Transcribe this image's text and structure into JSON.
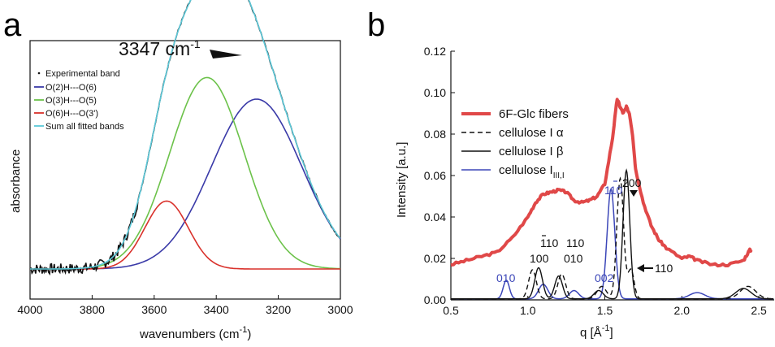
{
  "panels": {
    "a": "a",
    "b": "b"
  },
  "colors": {
    "experimental": "#111111",
    "o2h": "#3a3aa8",
    "o3h": "#6cc24a",
    "o6h": "#d9312b",
    "sum": "#5cc8d8",
    "fibers": "#e04848",
    "cellulose": "#111111",
    "cellulose_III": "#3b46b8"
  },
  "chart_data": [
    {
      "type": "line",
      "panel": "a",
      "title": "",
      "xlabel_main": "wavenumbers (cm",
      "xlabel_sup": "-1",
      "xlabel_end": ")",
      "ylabel": "absorbance",
      "xlim": [
        4000,
        3000
      ],
      "xticks": [
        "4000",
        "3800",
        "3600",
        "3400",
        "3200",
        "3000"
      ],
      "annotation": {
        "text": "3347 cm",
        "sup": "-1",
        "x": 3347
      },
      "series": [
        {
          "name": "Experimental band",
          "style": "dotted",
          "peak_x": 3347
        },
        {
          "name": "O(2)H---O(6)",
          "center": 3270,
          "height": 0.55,
          "width": 145
        },
        {
          "name": "O(3)H---O(5)",
          "center": 3430,
          "height": 0.62,
          "width": 120
        },
        {
          "name": "O(6)H---O(3')",
          "center": 3560,
          "height": 0.22,
          "width": 70
        },
        {
          "name": "Sum all fitted bands"
        }
      ]
    },
    {
      "type": "line",
      "panel": "b",
      "title": "",
      "xlabel_main": "q [Å",
      "xlabel_sup": "-1",
      "xlabel_end": "]",
      "ylabel": "Intensity [a.u.]",
      "xlim": [
        0.5,
        2.6
      ],
      "ylim": [
        0.0,
        0.12
      ],
      "xticks": [
        "0.5",
        "1.0",
        "1.5",
        "2.0",
        "2.5"
      ],
      "yticks": [
        "0.00",
        "0.02",
        "0.04",
        "0.06",
        "0.08",
        "0.10",
        "0.12"
      ],
      "legend": [
        {
          "name": "6F-Glc fibers",
          "style": "thick-red"
        },
        {
          "name": "cellulose I α",
          "style": "dashed"
        },
        {
          "name": "cellulose I β",
          "style": "solid"
        },
        {
          "name": "cellulose I",
          "sub": "III,I",
          "style": "blue"
        }
      ],
      "series": [
        {
          "name": "6F-Glc fibers",
          "x": [
            0.5,
            0.6,
            0.7,
            0.8,
            0.9,
            1.0,
            1.05,
            1.1,
            1.15,
            1.2,
            1.25,
            1.3,
            1.35,
            1.4,
            1.45,
            1.5,
            1.55,
            1.58,
            1.6,
            1.62,
            1.64,
            1.66,
            1.68,
            1.7,
            1.75,
            1.8,
            1.85,
            1.9,
            2.0,
            2.05,
            2.1,
            2.2,
            2.3,
            2.4,
            2.44,
            2.45
          ],
          "y": [
            0.017,
            0.019,
            0.021,
            0.023,
            0.03,
            0.04,
            0.047,
            0.051,
            0.052,
            0.053,
            0.052,
            0.048,
            0.047,
            0.048,
            0.05,
            0.056,
            0.078,
            0.097,
            0.093,
            0.09,
            0.093,
            0.09,
            0.08,
            0.063,
            0.047,
            0.036,
            0.029,
            0.025,
            0.02,
            0.021,
            0.019,
            0.017,
            0.017,
            0.019,
            0.024,
            0.024
          ]
        },
        {
          "name": "cellulose I α",
          "peaks": [
            [
              1.03,
              0.014,
              0.025
            ],
            [
              1.22,
              0.012,
              0.025
            ],
            [
              1.48,
              0.006,
              0.03
            ],
            [
              1.6,
              0.058,
              0.022
            ],
            [
              1.67,
              0.014,
              0.02
            ],
            [
              2.43,
              0.006,
              0.05
            ]
          ]
        },
        {
          "name": "cellulose I β",
          "peaks": [
            [
              1.07,
              0.015,
              0.025
            ],
            [
              1.2,
              0.011,
              0.025
            ],
            [
              1.46,
              0.004,
              0.03
            ],
            [
              1.64,
              0.062,
              0.022
            ],
            [
              2.4,
              0.005,
              0.05
            ]
          ]
        },
        {
          "name": "cellulose I III,I",
          "peaks": [
            [
              0.86,
              0.009,
              0.02
            ],
            [
              1.1,
              0.007,
              0.03
            ],
            [
              1.3,
              0.004,
              0.03
            ],
            [
              1.54,
              0.053,
              0.025
            ],
            [
              2.1,
              0.003,
              0.05
            ]
          ]
        }
      ],
      "annotations": [
        {
          "text": "010",
          "color": "blue"
        },
        {
          "text": "100",
          "color": "black"
        },
        {
          "text": "110",
          "bar": true,
          "color": "black"
        },
        {
          "text": "110",
          "color": "black"
        },
        {
          "text": "010",
          "color": "black"
        },
        {
          "text": "002",
          "color": "blue"
        },
        {
          "text": "110",
          "bar": true,
          "color": "blue"
        },
        {
          "text": "200",
          "color": "black"
        },
        {
          "text": "110",
          "color": "black"
        }
      ]
    }
  ]
}
